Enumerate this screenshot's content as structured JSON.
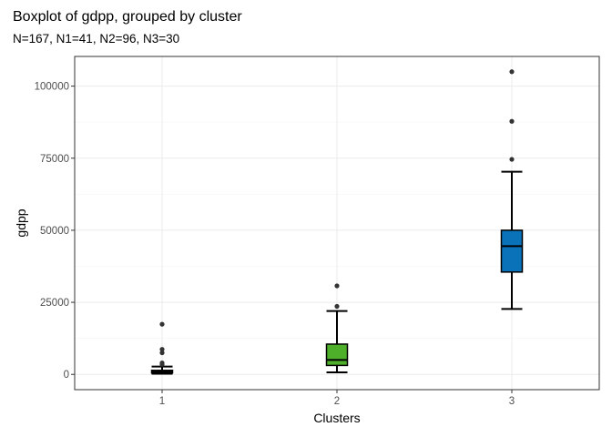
{
  "chart_data": {
    "type": "boxplot",
    "title": "Boxplot of gdpp, grouped by cluster",
    "subtitle": "N=167, N1=41, N2=96, N3=30",
    "xlabel": "Clusters",
    "ylabel": "gdpp",
    "categories": [
      "1",
      "2",
      "3"
    ],
    "y_ticks": [
      0,
      25000,
      50000,
      75000,
      100000
    ],
    "y_tick_labels": [
      "0",
      "25000",
      "50000",
      "75000",
      "100000"
    ],
    "ylim": [
      -5300,
      110300
    ],
    "grid": true,
    "boxes": [
      {
        "category": "1",
        "color": "#0b0b0b",
        "whisker_low": 230,
        "q1": 500,
        "median": 900,
        "q3": 1400,
        "whisker_high": 2700,
        "outliers": [
          3500,
          4000,
          7500,
          8700,
          17400
        ]
      },
      {
        "category": "2",
        "color": "#4daf2a",
        "whisker_low": 700,
        "q1": 3100,
        "median": 5000,
        "q3": 10500,
        "whisker_high": 22000,
        "outliers": [
          23600,
          30700
        ]
      },
      {
        "category": "3",
        "color": "#0a72b8",
        "whisker_low": 22700,
        "q1": 35500,
        "median": 44500,
        "q3": 50000,
        "whisker_high": 70300,
        "outliers": [
          74600,
          87800,
          105000
        ]
      }
    ]
  }
}
